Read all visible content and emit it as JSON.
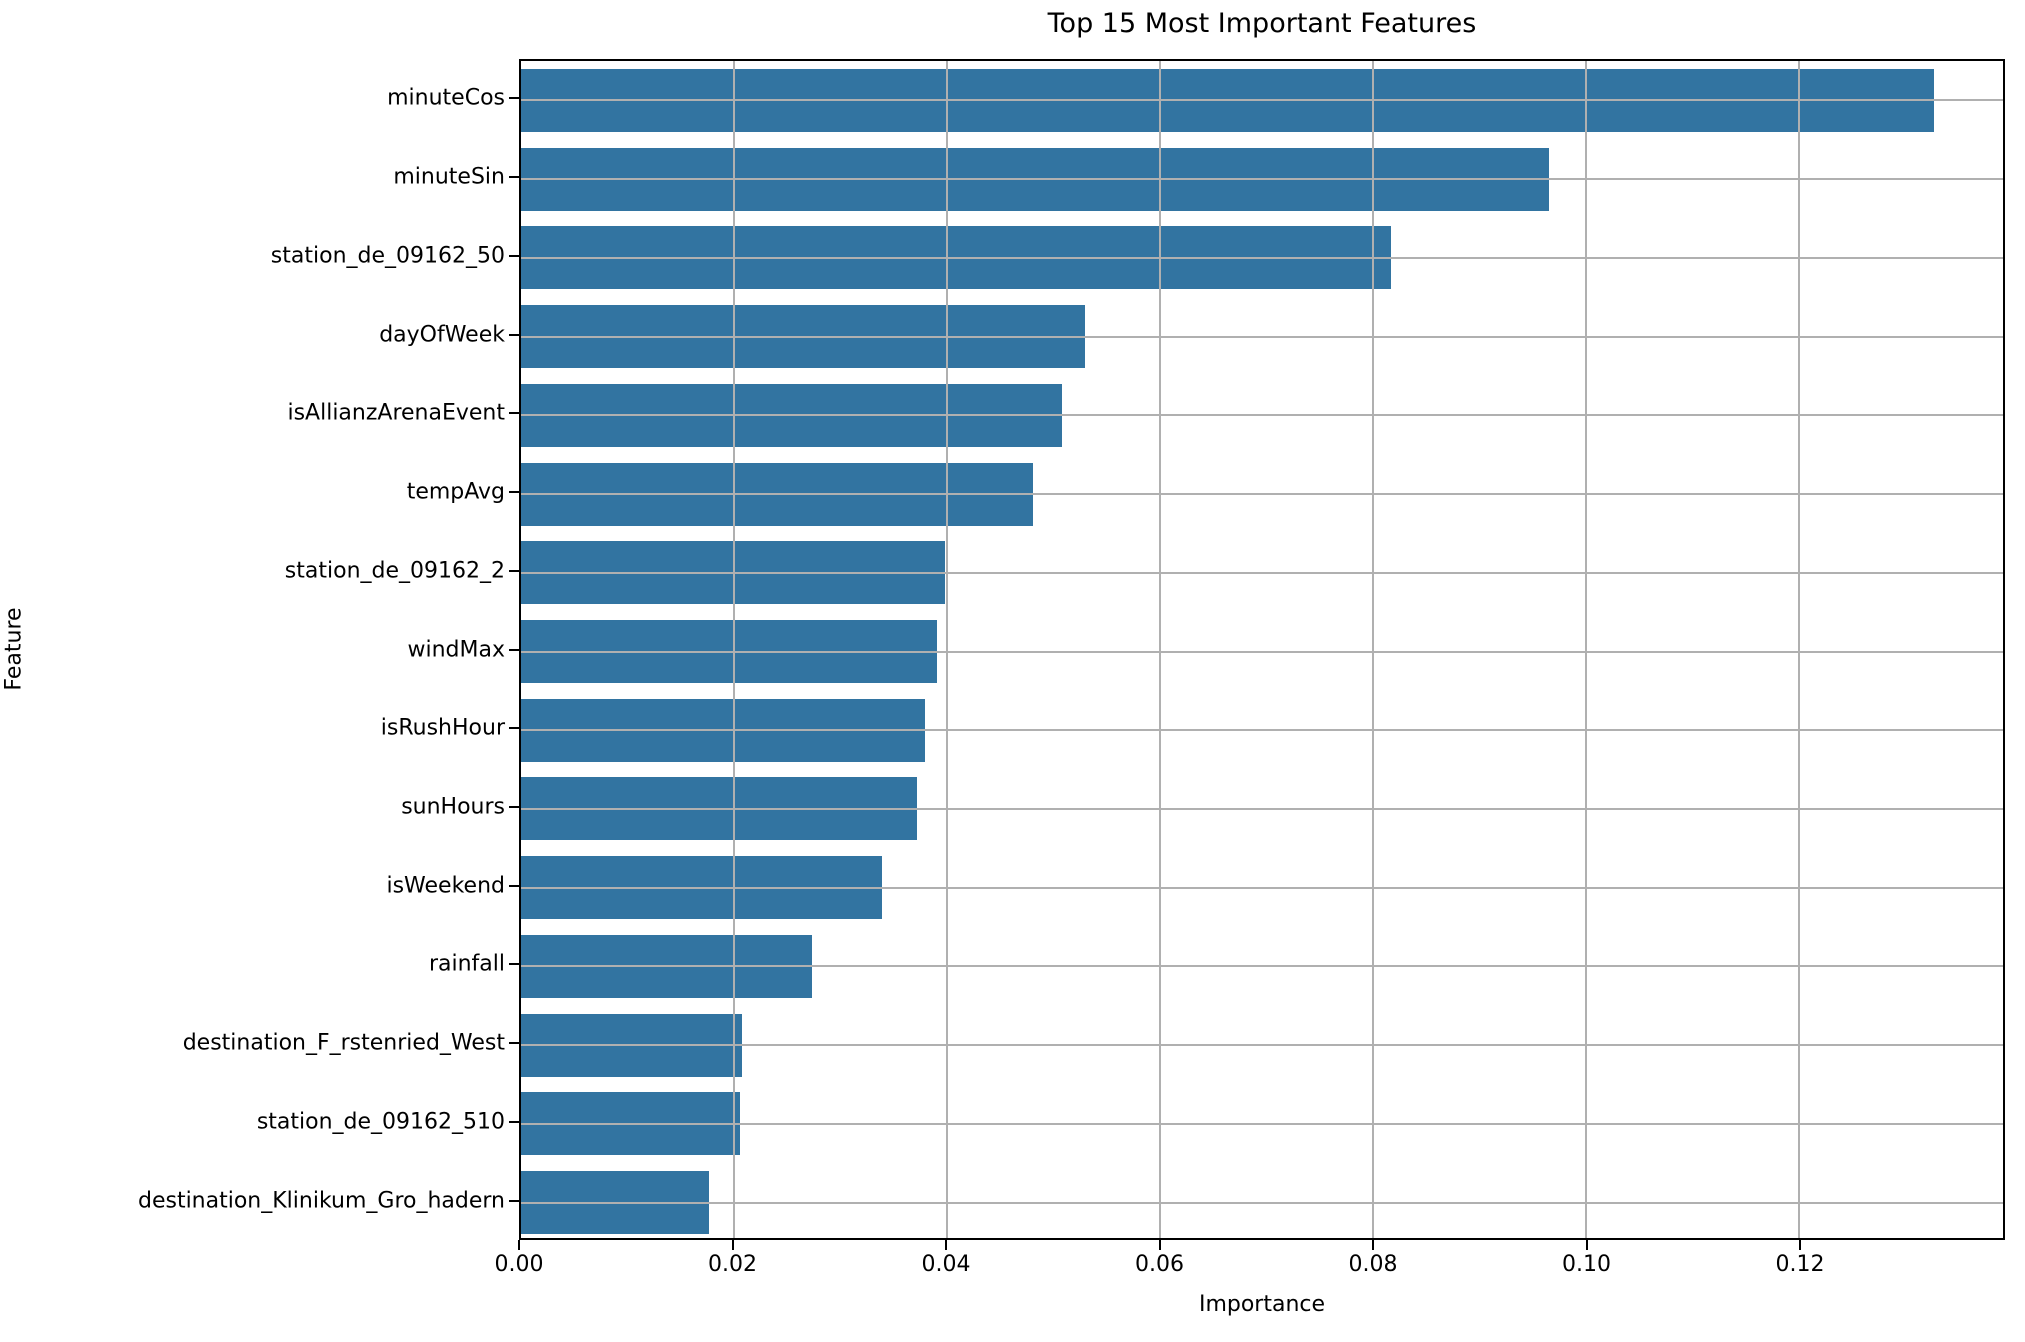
{
  "chart_data": {
    "type": "bar",
    "orientation": "horizontal",
    "title": "Top 15 Most Important Features",
    "xlabel": "Importance",
    "ylabel": "Feature",
    "categories": [
      "minuteCos",
      "minuteSin",
      "station_de_09162_50",
      "dayOfWeek",
      "isAllianzArenaEvent",
      "tempAvg",
      "station_de_09162_2",
      "windMax",
      "isRushHour",
      "sunHours",
      "isWeekend",
      "rainfall",
      "destination_F_rstenried_West",
      "station_de_09162_510",
      "destination_Klinikum_Gro_hadern"
    ],
    "values": [
      0.1327,
      0.0966,
      0.0817,
      0.053,
      0.0508,
      0.0481,
      0.0398,
      0.0391,
      0.0379,
      0.0372,
      0.0339,
      0.0273,
      0.0208,
      0.0206,
      0.0177
    ],
    "xlim": [
      0,
      0.1392
    ],
    "xticks": [
      0.0,
      0.02,
      0.04,
      0.06,
      0.08,
      0.1,
      0.12
    ],
    "xtick_labels": [
      "0.00",
      "0.02",
      "0.04",
      "0.06",
      "0.08",
      "0.10",
      "0.12"
    ],
    "grid": true,
    "grid_on_top_of_bars": true,
    "legend": null,
    "colors": {
      "bar": "#3274A1",
      "grid": "#b0b0b0",
      "spine": "#000000",
      "text": "#000000",
      "background": "#ffffff"
    }
  }
}
